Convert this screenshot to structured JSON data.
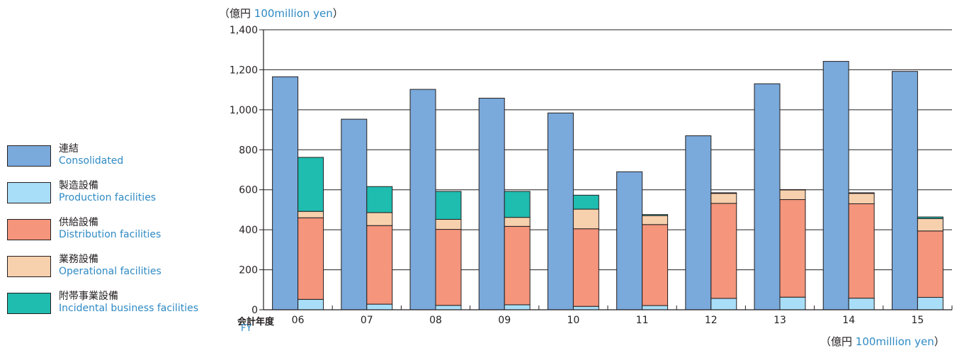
{
  "chart_data": {
    "type": "bar",
    "categories": [
      "06",
      "07",
      "08",
      "09",
      "10",
      "11",
      "12",
      "13",
      "14",
      "15"
    ],
    "series": [
      {
        "name_jp": "連結",
        "name": "Consolidated",
        "group": "consolidated",
        "color": "#7aa9db",
        "values": [
          1165,
          953,
          1102,
          1058,
          984,
          690,
          870,
          1130,
          1242,
          1192
        ]
      },
      {
        "name_jp": "製造設備",
        "name": "Production facilities",
        "group": "breakdown",
        "color": "#a8def7",
        "values": [
          52,
          28,
          22,
          25,
          17,
          21,
          57,
          63,
          58,
          62
        ]
      },
      {
        "name_jp": "供給設備",
        "name": "Distribution facilities",
        "group": "breakdown",
        "color": "#f4957c",
        "values": [
          408,
          393,
          380,
          392,
          388,
          405,
          475,
          488,
          472,
          332
        ]
      },
      {
        "name_jp": "業務設備",
        "name": "Operational facilities",
        "group": "breakdown",
        "color": "#f7d0ad",
        "values": [
          32,
          65,
          50,
          45,
          98,
          45,
          50,
          48,
          52,
          62
        ]
      },
      {
        "name_jp": "附帯事業設備",
        "name": "Incidental business facilities",
        "group": "breakdown",
        "color": "#1fbcb0",
        "values": [
          270,
          130,
          140,
          130,
          70,
          5,
          3,
          2,
          3,
          8
        ]
      }
    ],
    "yticks": [
      "0",
      "200",
      "400",
      "600",
      "800",
      "1,000",
      "1,200",
      "1,400"
    ],
    "ylim": [
      0,
      1400
    ],
    "grid": true,
    "legend_placement": "left",
    "unit_label": {
      "jp_open": "（億円",
      "en": "100million yen",
      "jp_close": "）"
    },
    "xlabel": {
      "jp": "会計年度",
      "en": "FY"
    }
  }
}
